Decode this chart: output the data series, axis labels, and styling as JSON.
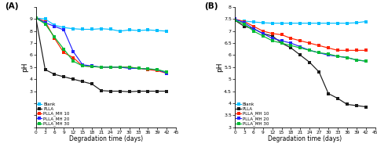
{
  "x_days": [
    0,
    3,
    6,
    9,
    12,
    15,
    18,
    21,
    24,
    27,
    30,
    33,
    36,
    39,
    42
  ],
  "A_blank": [
    9.1,
    9.0,
    8.5,
    8.3,
    8.2,
    8.15,
    8.15,
    8.2,
    8.15,
    8.0,
    8.1,
    8.05,
    8.1,
    8.05,
    8.0
  ],
  "A_plla": [
    9.1,
    4.8,
    4.4,
    4.2,
    4.0,
    3.8,
    3.6,
    3.05,
    3.0,
    3.0,
    2.95,
    3.0,
    3.0,
    3.0,
    3.0
  ],
  "A_mh10": [
    9.1,
    8.8,
    7.4,
    6.2,
    5.8,
    5.1,
    5.05,
    5.0,
    5.0,
    5.0,
    5.0,
    4.9,
    4.8,
    4.7,
    4.5
  ],
  "A_mh20": [
    9.1,
    8.7,
    8.4,
    8.1,
    6.3,
    5.2,
    5.1,
    5.0,
    5.0,
    5.0,
    4.9,
    4.9,
    4.85,
    4.8,
    4.5
  ],
  "A_mh30": [
    9.1,
    8.6,
    7.5,
    6.5,
    5.5,
    5.1,
    5.05,
    5.0,
    5.0,
    5.0,
    5.0,
    4.9,
    4.85,
    4.8,
    4.6
  ],
  "B_blank": [
    7.45,
    7.42,
    7.38,
    7.35,
    7.33,
    7.33,
    7.33,
    7.33,
    7.33,
    7.33,
    7.33,
    7.33,
    7.33,
    7.35,
    7.4
  ],
  "B_plla": [
    7.45,
    7.2,
    7.1,
    6.9,
    6.8,
    6.5,
    6.3,
    6.0,
    5.7,
    5.3,
    4.4,
    4.2,
    3.95,
    3.9,
    3.85
  ],
  "B_mh10": [
    7.5,
    7.4,
    7.2,
    7.0,
    6.9,
    6.85,
    6.7,
    6.6,
    6.5,
    6.4,
    6.3,
    6.2,
    6.2,
    6.2,
    6.2
  ],
  "B_mh20": [
    7.5,
    7.35,
    7.1,
    6.9,
    6.7,
    6.6,
    6.5,
    6.35,
    6.2,
    6.1,
    6.0,
    5.95,
    5.9,
    5.8,
    5.75
  ],
  "B_mh30": [
    7.45,
    7.3,
    7.0,
    6.8,
    6.6,
    6.5,
    6.4,
    6.3,
    6.2,
    6.1,
    6.05,
    5.95,
    5.9,
    5.8,
    5.75
  ],
  "colors": {
    "blank": "#00BFFF",
    "plla": "#1a1a1a",
    "mh10": "#FF2200",
    "mh20": "#2222FF",
    "mh30": "#00BB33"
  },
  "labels": [
    "Blank",
    "PLLA",
    "PLLA_MH 10",
    "PLLA_MH 20",
    "PLLA_MH 30"
  ],
  "xlabel": "Degradation time (days)",
  "ylabel": "pH",
  "A_ylim": [
    0,
    10
  ],
  "A_yticks": [
    0,
    1,
    2,
    3,
    4,
    5,
    6,
    7,
    8,
    9,
    10
  ],
  "A_ytick_labels": [
    "",
    "",
    "",
    "3",
    "4",
    "5",
    "6",
    "7",
    "8",
    "9",
    ""
  ],
  "B_ylim": [
    3,
    8
  ],
  "B_yticks": [
    3.0,
    3.5,
    4.0,
    4.5,
    5.0,
    5.5,
    6.0,
    6.5,
    7.0,
    7.5,
    8.0
  ],
  "B_ytick_labels": [
    "3",
    "3.5",
    "4",
    "4.5",
    "5",
    "5.5",
    "6",
    "6.5",
    "7",
    "7.5",
    "8"
  ],
  "xticks": [
    0,
    3,
    6,
    9,
    12,
    15,
    18,
    21,
    24,
    27,
    30,
    33,
    36,
    39,
    42,
    45
  ],
  "xtick_labels": [
    "0",
    "3",
    "6",
    "9",
    "12",
    "15",
    "18",
    "21",
    "24",
    "27",
    "30",
    "33",
    "36",
    "39",
    "42",
    "45"
  ],
  "panel_A": "(A)",
  "panel_B": "(B)"
}
